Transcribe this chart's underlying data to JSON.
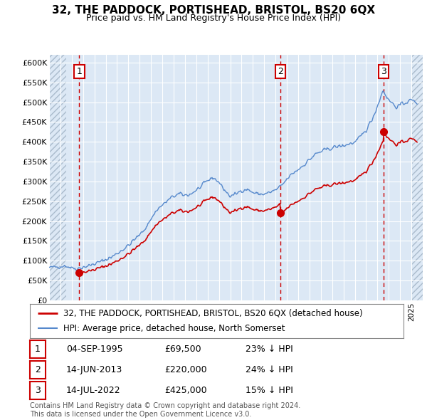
{
  "title": "32, THE PADDOCK, PORTISHEAD, BRISTOL, BS20 6QX",
  "subtitle": "Price paid vs. HM Land Registry's House Price Index (HPI)",
  "property_color": "#cc0000",
  "hpi_color": "#5588cc",
  "background_color": "#ffffff",
  "plot_bg_color": "#dce8f5",
  "ylim": [
    0,
    620000
  ],
  "yticks": [
    0,
    50000,
    100000,
    150000,
    200000,
    250000,
    300000,
    350000,
    400000,
    450000,
    500000,
    550000,
    600000
  ],
  "xlim_start": 1993.0,
  "xlim_end": 2026.0,
  "sales": [
    {
      "date_num": 1995.67,
      "price": 69500,
      "label": "1"
    },
    {
      "date_num": 2013.45,
      "price": 220000,
      "label": "2"
    },
    {
      "date_num": 2022.53,
      "price": 425000,
      "label": "3"
    }
  ],
  "legend_property": "32, THE PADDOCK, PORTISHEAD, BRISTOL, BS20 6QX (detached house)",
  "legend_hpi": "HPI: Average price, detached house, North Somerset",
  "table_rows": [
    {
      "num": "1",
      "date": "04-SEP-1995",
      "price": "£69,500",
      "hpi": "23% ↓ HPI"
    },
    {
      "num": "2",
      "date": "14-JUN-2013",
      "price": "£220,000",
      "hpi": "24% ↓ HPI"
    },
    {
      "num": "3",
      "date": "14-JUL-2022",
      "price": "£425,000",
      "hpi": "15% ↓ HPI"
    }
  ],
  "footer": "Contains HM Land Registry data © Crown copyright and database right 2024.\nThis data is licensed under the Open Government Licence v3.0.",
  "hpi_base_points": [
    [
      1993.0,
      82000
    ],
    [
      1993.5,
      84000
    ],
    [
      1994.0,
      86000
    ],
    [
      1994.5,
      87000
    ],
    [
      1995.0,
      82000
    ],
    [
      1995.5,
      80000
    ],
    [
      1996.0,
      84000
    ],
    [
      1996.5,
      87000
    ],
    [
      1997.0,
      92000
    ],
    [
      1997.5,
      97000
    ],
    [
      1998.0,
      103000
    ],
    [
      1998.5,
      109000
    ],
    [
      1999.0,
      118000
    ],
    [
      1999.5,
      128000
    ],
    [
      2000.0,
      138000
    ],
    [
      2000.5,
      152000
    ],
    [
      2001.0,
      165000
    ],
    [
      2001.5,
      182000
    ],
    [
      2002.0,
      205000
    ],
    [
      2002.5,
      228000
    ],
    [
      2003.0,
      240000
    ],
    [
      2003.5,
      252000
    ],
    [
      2004.0,
      263000
    ],
    [
      2004.5,
      268000
    ],
    [
      2005.0,
      265000
    ],
    [
      2005.5,
      268000
    ],
    [
      2006.0,
      278000
    ],
    [
      2006.5,
      288000
    ],
    [
      2007.0,
      302000
    ],
    [
      2007.5,
      310000
    ],
    [
      2008.0,
      298000
    ],
    [
      2008.5,
      278000
    ],
    [
      2009.0,
      262000
    ],
    [
      2009.5,
      268000
    ],
    [
      2010.0,
      278000
    ],
    [
      2010.5,
      280000
    ],
    [
      2011.0,
      272000
    ],
    [
      2011.5,
      268000
    ],
    [
      2012.0,
      268000
    ],
    [
      2012.5,
      272000
    ],
    [
      2013.0,
      278000
    ],
    [
      2013.5,
      288000
    ],
    [
      2014.0,
      305000
    ],
    [
      2014.5,
      320000
    ],
    [
      2015.0,
      330000
    ],
    [
      2015.5,
      342000
    ],
    [
      2016.0,
      355000
    ],
    [
      2016.5,
      368000
    ],
    [
      2017.0,
      375000
    ],
    [
      2017.5,
      380000
    ],
    [
      2018.0,
      385000
    ],
    [
      2018.5,
      388000
    ],
    [
      2019.0,
      390000
    ],
    [
      2019.5,
      395000
    ],
    [
      2020.0,
      398000
    ],
    [
      2020.5,
      412000
    ],
    [
      2021.0,
      430000
    ],
    [
      2021.5,
      455000
    ],
    [
      2022.0,
      490000
    ],
    [
      2022.3,
      515000
    ],
    [
      2022.5,
      530000
    ],
    [
      2022.7,
      520000
    ],
    [
      2023.0,
      505000
    ],
    [
      2023.3,
      498000
    ],
    [
      2023.5,
      492000
    ],
    [
      2023.7,
      488000
    ],
    [
      2024.0,
      492000
    ],
    [
      2024.5,
      500000
    ],
    [
      2025.0,
      505000
    ],
    [
      2025.5,
      500000
    ]
  ]
}
